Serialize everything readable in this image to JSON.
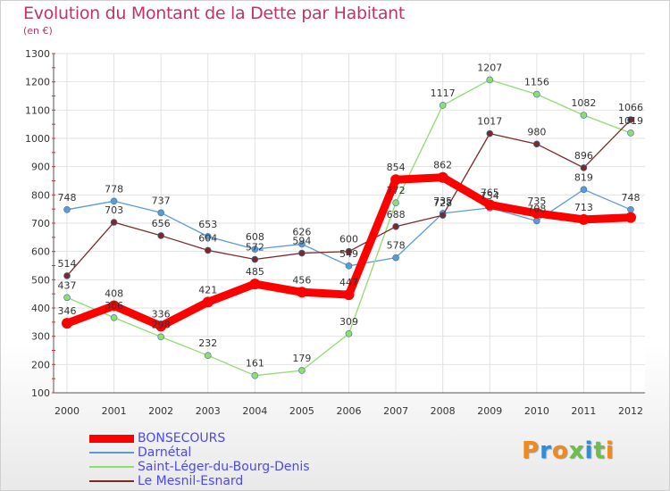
{
  "header": {
    "title": "Evolution du Montant de la Dette par Habitant",
    "subtitle": "(en €)"
  },
  "logo": {
    "text": "Proxiti",
    "colors": [
      "#f08a1c",
      "#2f8fd6",
      "#f08a1c",
      "#6cc04a",
      "#2f8fd6",
      "#6cc04a",
      "#f08a1c"
    ]
  },
  "chart_data": {
    "type": "line",
    "title": "Evolution du Montant de la Dette par Habitant",
    "subtitle": "(en €)",
    "xlabel": "",
    "ylabel": "",
    "x": [
      "2000",
      "2001",
      "2002",
      "2003",
      "2004",
      "2005",
      "2006",
      "2007",
      "2008",
      "2009",
      "2010",
      "2011",
      "2012"
    ],
    "ylim": [
      100,
      1300
    ],
    "yticks": [
      100,
      200,
      300,
      400,
      500,
      600,
      700,
      800,
      900,
      1000,
      1100,
      1200,
      1300
    ],
    "grid": true,
    "legend_position": "bottom-left",
    "series": [
      {
        "name": "BONSECOURS",
        "color": "#ff0000",
        "values": [
          346,
          408,
          336,
          421,
          485,
          456,
          447,
          854,
          862,
          765,
          735,
          713,
          720
        ],
        "labels": [
          "346",
          "408",
          "336",
          "421",
          "485",
          "456",
          "447",
          "854",
          "862",
          "765",
          "735",
          "713",
          ""
        ],
        "emphasis": true
      },
      {
        "name": "Darnétal",
        "color": "#5b9bd5",
        "values": [
          748,
          778,
          737,
          653,
          608,
          626,
          549,
          578,
          735,
          754,
          708,
          819,
          748
        ],
        "labels": [
          "748",
          "778",
          "737",
          "653",
          "608",
          "626",
          "549",
          "578",
          "735",
          "754",
          "708",
          "819",
          "748"
        ]
      },
      {
        "name": "Saint-Léger-du-Bourg-Denis",
        "color": "#8fdc6f",
        "values": [
          437,
          366,
          298,
          232,
          161,
          179,
          309,
          772,
          1117,
          1207,
          1156,
          1082,
          1019
        ],
        "labels": [
          "437",
          "366",
          "298",
          "232",
          "161",
          "179",
          "309",
          "772",
          "1117",
          "1207",
          "1156",
          "1082",
          "1019"
        ]
      },
      {
        "name": "Le Mesnil-Esnard",
        "color": "#7a2a2a",
        "values": [
          514,
          703,
          656,
          604,
          572,
          594,
          600,
          688,
          728,
          1017,
          980,
          896,
          1066
        ],
        "labels": [
          "514",
          "703",
          "656",
          "604",
          "572",
          "594",
          "600",
          "688",
          "728",
          "1017",
          "980",
          "896",
          "1066"
        ]
      }
    ]
  }
}
